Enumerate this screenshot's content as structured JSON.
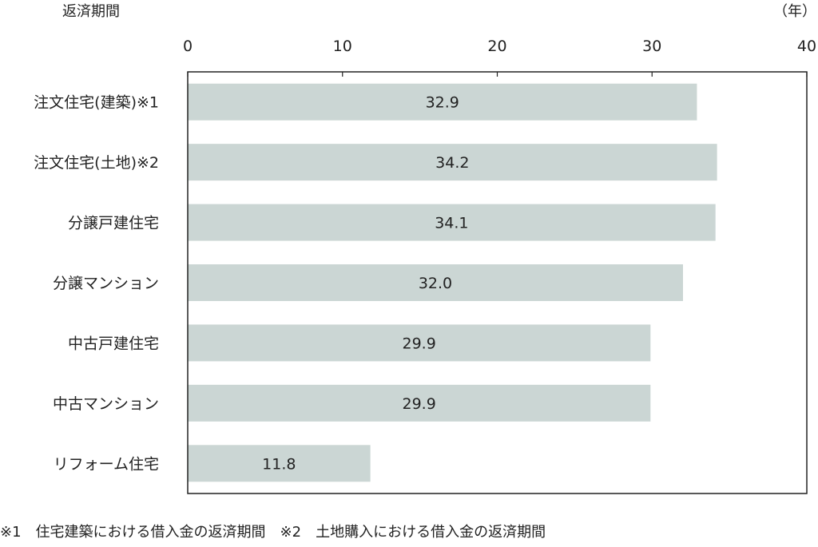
{
  "chart_data": {
    "type": "bar",
    "orientation": "horizontal",
    "ylabel": "返済期間",
    "unit": "（年）",
    "xlim": [
      0,
      40
    ],
    "xticks": [
      0,
      10,
      20,
      30,
      40
    ],
    "categories": [
      "注文住宅(建築)※1",
      "注文住宅(土地)※2",
      "分譲戸建住宅",
      "分譲マンション",
      "中古戸建住宅",
      "中古マンション",
      "リフォーム住宅"
    ],
    "values": [
      32.9,
      34.2,
      34.1,
      32.0,
      29.9,
      29.9,
      11.8
    ],
    "value_labels": [
      "32.9",
      "34.2",
      "34.1",
      "32.0",
      "29.9",
      "29.9",
      "11.8"
    ],
    "bar_color": "#cbd6d4",
    "grid": false,
    "legend": "none"
  },
  "footnote": "※1　住宅建築における借入金の返済期間　※2　土地購入における借入金の返済期間"
}
